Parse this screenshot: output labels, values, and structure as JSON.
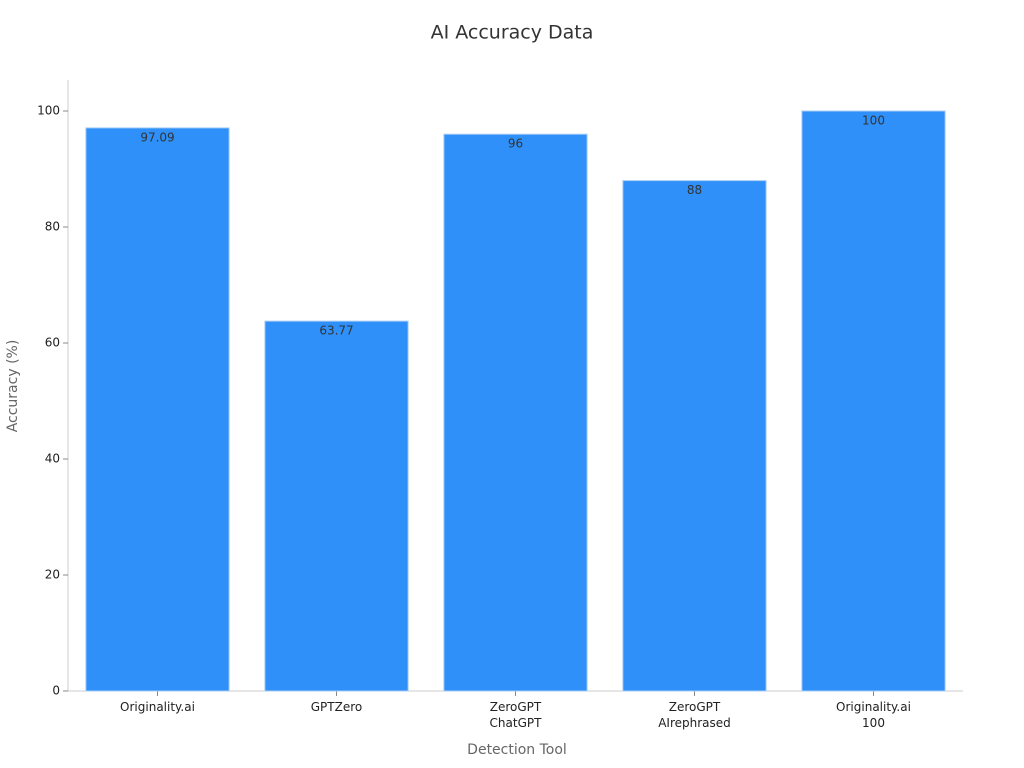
{
  "chart_data": {
    "type": "bar",
    "title": "AI Accuracy Data",
    "x_label": "Detection Tool",
    "y_label": "Accuracy (%)",
    "categories": [
      "Originality.ai",
      "GPTZero",
      "ZeroGPT\nChatGPT",
      "ZeroGPT\nAIrephrased",
      "Originality.ai\n100"
    ],
    "values": [
      97.09,
      63.77,
      96,
      88,
      100
    ],
    "color": "#2e90f8",
    "ylim": [
      0,
      105
    ],
    "yticks": [
      0,
      20,
      40,
      60,
      80,
      100
    ],
    "grid": false
  }
}
